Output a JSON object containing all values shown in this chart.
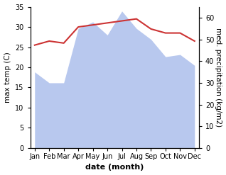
{
  "months": [
    "Jan",
    "Feb",
    "Mar",
    "Apr",
    "May",
    "Jun",
    "Jul",
    "Aug",
    "Sep",
    "Oct",
    "Nov",
    "Dec"
  ],
  "x": [
    0,
    1,
    2,
    3,
    4,
    5,
    6,
    7,
    8,
    9,
    10,
    11
  ],
  "precipitation": [
    35,
    30,
    30,
    55,
    58,
    52,
    63,
    55,
    50,
    42,
    43,
    38
  ],
  "temperature": [
    25.5,
    26.5,
    26,
    30,
    30.5,
    31,
    31.5,
    32,
    29.5,
    28.5,
    28.5,
    26.5
  ],
  "temp_color": "#cc3333",
  "precip_color": "#b8c8ee",
  "ylabel_left": "max temp (C)",
  "ylabel_right": "med. precipitation (kg/m2)",
  "xlabel": "date (month)",
  "ylim_left": [
    0,
    35
  ],
  "ylim_right": [
    0,
    65
  ],
  "yticks_left": [
    0,
    5,
    10,
    15,
    20,
    25,
    30,
    35
  ],
  "yticks_right": [
    0,
    10,
    20,
    30,
    40,
    50,
    60
  ],
  "bg_color": "#ffffff",
  "axis_fontsize": 7.5,
  "tick_fontsize": 7,
  "xlabel_fontsize": 8
}
